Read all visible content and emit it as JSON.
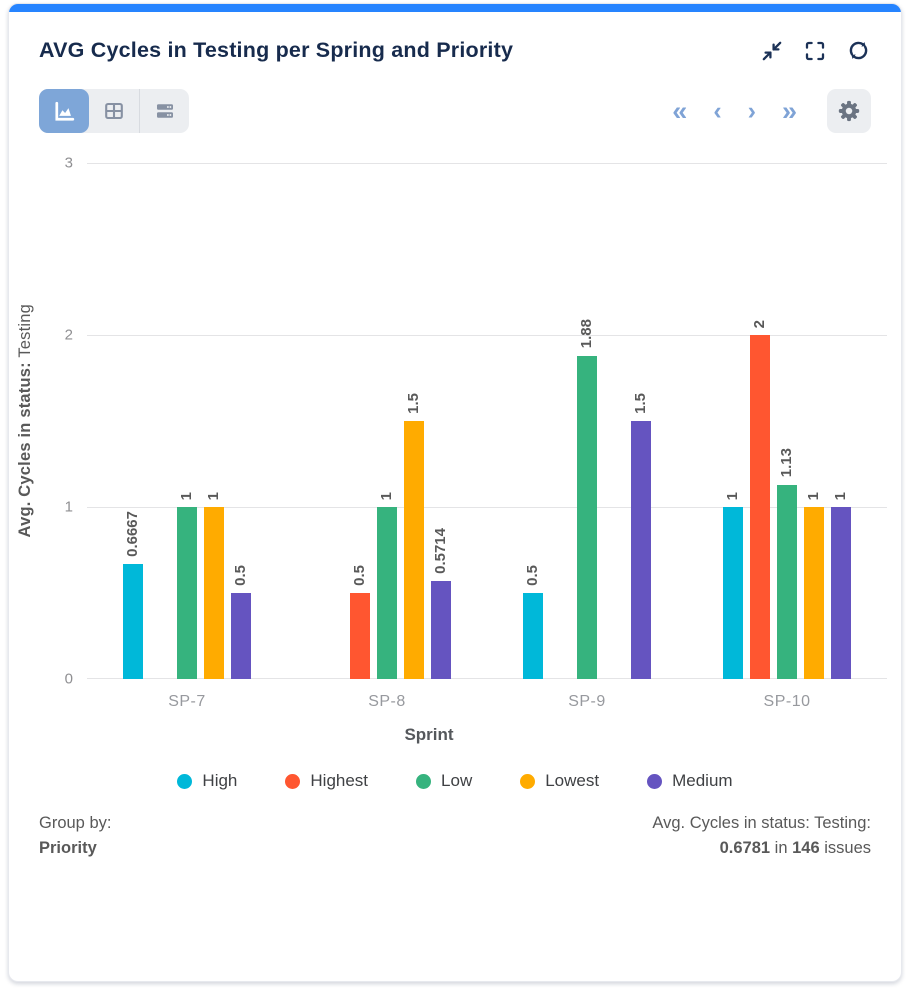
{
  "colors": {
    "top_bar": "#2684FF",
    "title_text": "#172B4D",
    "active_view_bg": "#7EA6D8",
    "pagination": "#7FA3D6",
    "grid_line": "#e4e4e6"
  },
  "header": {
    "title": "AVG Cycles in Testing per Spring and Priority"
  },
  "toolbar": {
    "pagination": {
      "first": "«",
      "prev": "‹",
      "next": "›",
      "last": "»"
    }
  },
  "chart_data": {
    "type": "bar",
    "title": "AVG Cycles in Testing per Spring and Priority",
    "categories": [
      "SP-7",
      "SP-8",
      "SP-9",
      "SP-10"
    ],
    "series": [
      {
        "name": "High",
        "color": "#00B8D9",
        "values": [
          0.6667,
          null,
          0.5,
          1
        ],
        "labels": [
          "0.6667",
          "",
          "0.5",
          "1"
        ]
      },
      {
        "name": "Highest",
        "color": "#FF5630",
        "values": [
          null,
          0.5,
          null,
          2
        ],
        "labels": [
          "",
          "0.5",
          "",
          "2"
        ]
      },
      {
        "name": "Low",
        "color": "#36B37E",
        "values": [
          1,
          1,
          1.88,
          1.13
        ],
        "labels": [
          "1",
          "1",
          "1.88",
          "1.13"
        ]
      },
      {
        "name": "Lowest",
        "color": "#FFAB00",
        "values": [
          1,
          1.5,
          null,
          1
        ],
        "labels": [
          "1",
          "1.5",
          "",
          "1"
        ]
      },
      {
        "name": "Medium",
        "color": "#6554C0",
        "values": [
          0.5,
          0.5714,
          1.5,
          1
        ],
        "labels": [
          "0.5",
          "0.5714",
          "1.5",
          "1"
        ]
      }
    ],
    "xlabel": "Sprint",
    "ylabel_bold": "Avg. Cycles in status:",
    "ylabel_regular": " Testing",
    "ylim": [
      0,
      3
    ],
    "yticks": [
      0,
      1,
      2,
      3
    ],
    "grid": true,
    "legend_position": "bottom",
    "value_label_rotation": -90
  },
  "footer": {
    "group_by_label": "Group by:",
    "group_by_value": "Priority",
    "summary_label": "Avg. Cycles in status: Testing:",
    "summary_value": "0.6781",
    "summary_mid": " in ",
    "summary_count": "146",
    "summary_suffix": " issues"
  }
}
